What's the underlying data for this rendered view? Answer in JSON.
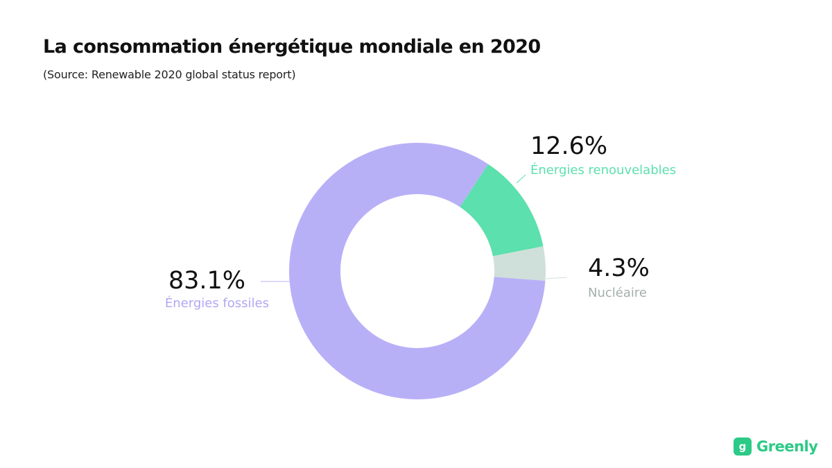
{
  "chart_data": {
    "type": "pie",
    "title": "La consommation énergétique mondiale en 2020",
    "subtitle": "(Source: Renewable 2020 global status report)",
    "donut": true,
    "unit": "%",
    "slices": [
      {
        "label": "Énergies renouvelables",
        "value": 12.6,
        "value_label": "12.6%",
        "color": "#5ce0ad",
        "label_color": "#5ce0ad"
      },
      {
        "label": "Nucléaire",
        "value": 4.3,
        "value_label": "4.3%",
        "color": "#cfe0da",
        "label_color": "#a3b0aa"
      },
      {
        "label": "Énergies fossiles",
        "value": 83.1,
        "value_label": "83.1%",
        "color": "#b8b0f7",
        "label_color": "#b0a7f3"
      }
    ]
  },
  "brand": {
    "name": "Greenly",
    "mark": "g",
    "color": "#2bca86"
  }
}
